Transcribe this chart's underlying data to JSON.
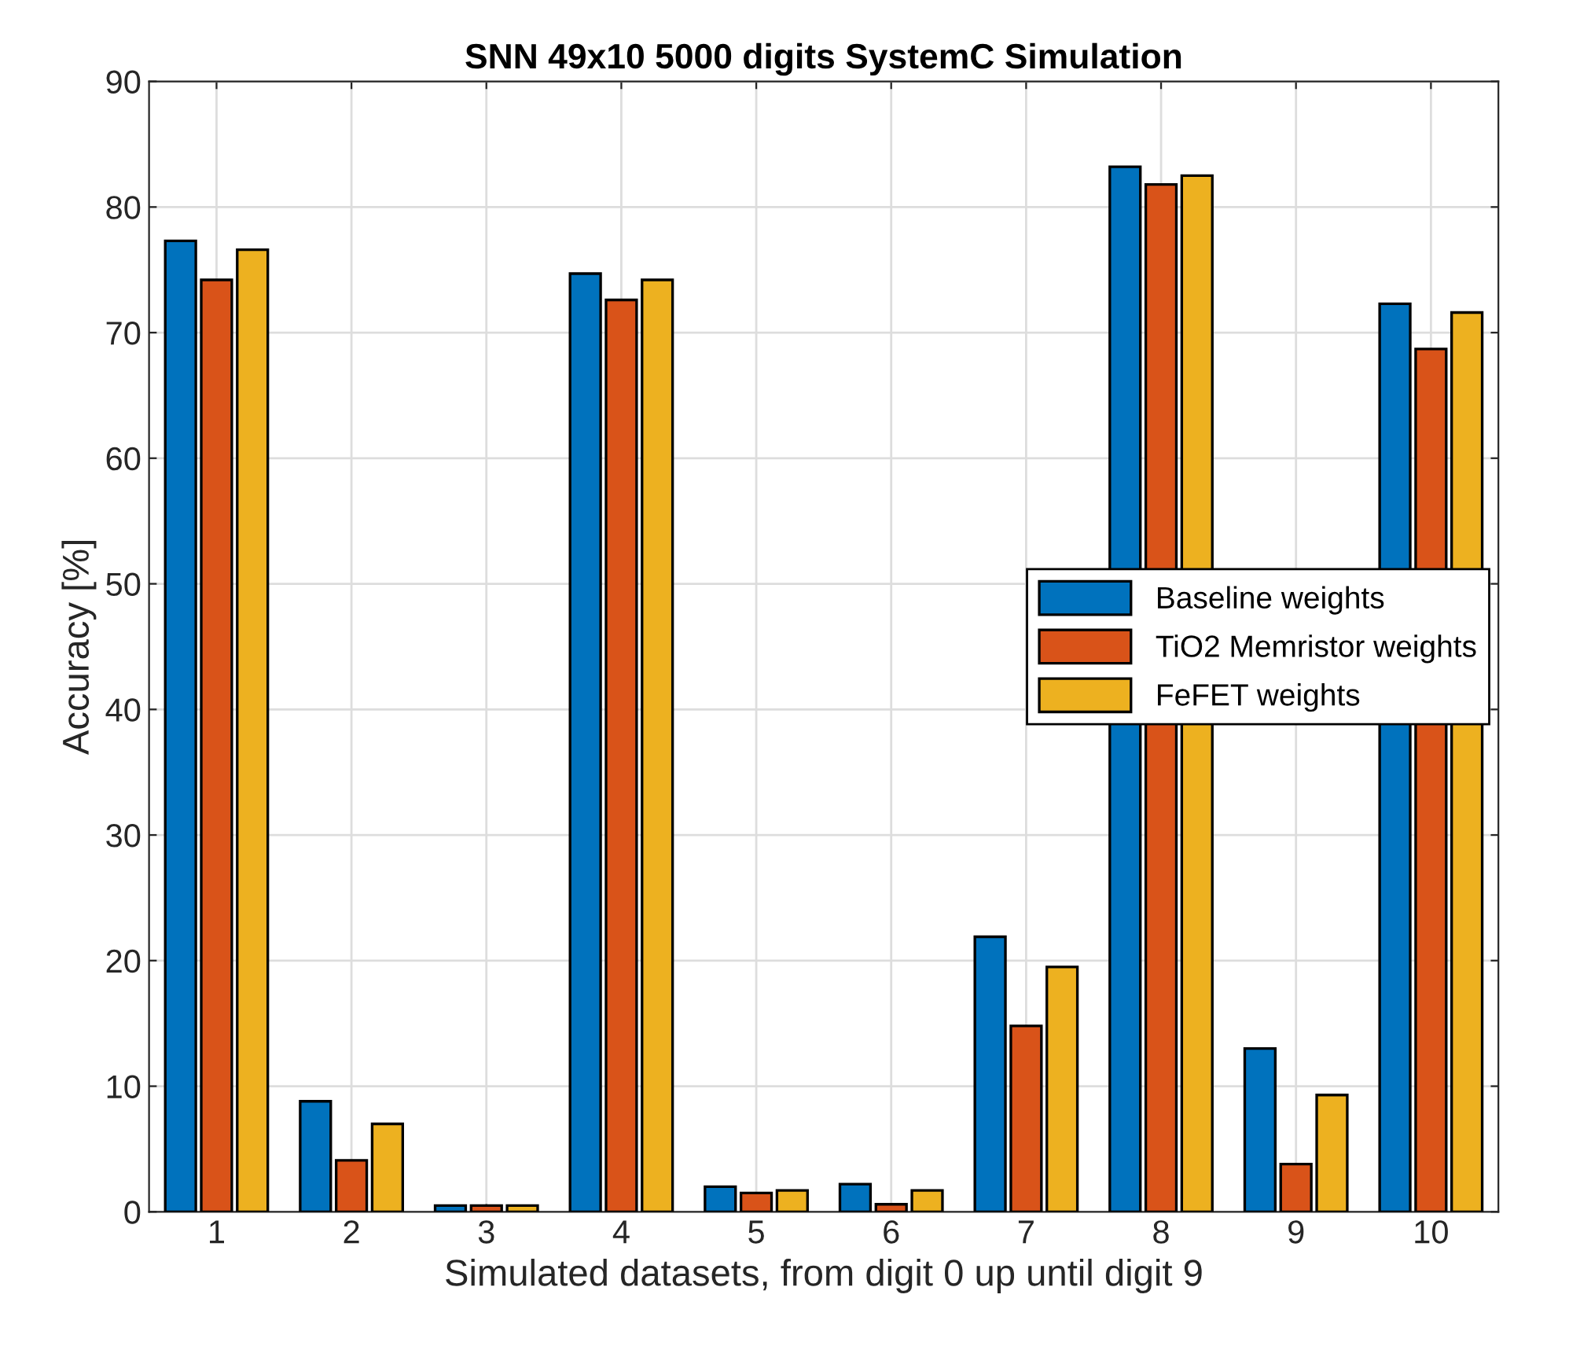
{
  "chart_data": {
    "type": "bar",
    "title": "SNN 49x10 5000 digits SystemC Simulation",
    "xlabel": "Simulated datasets, from digit 0 up until digit 9",
    "ylabel": "Accuracy [%]",
    "categories": [
      "1",
      "2",
      "3",
      "4",
      "5",
      "6",
      "7",
      "8",
      "9",
      "10"
    ],
    "series": [
      {
        "name": "Baseline weights",
        "color": "#0072bd",
        "values": [
          77.3,
          8.8,
          0.5,
          74.7,
          2.0,
          2.2,
          21.9,
          83.2,
          13.0,
          72.3
        ]
      },
      {
        "name": "TiO2 Memristor weights",
        "color": "#d95319",
        "values": [
          74.2,
          4.1,
          0.5,
          72.6,
          1.5,
          0.6,
          14.8,
          81.8,
          3.8,
          68.7
        ]
      },
      {
        "name": "FeFET weights",
        "color": "#edb120",
        "values": [
          76.6,
          7.0,
          0.5,
          74.2,
          1.7,
          1.7,
          19.5,
          82.5,
          9.3,
          71.6
        ]
      }
    ],
    "ylim": [
      0,
      90
    ],
    "yticks": [
      0,
      10,
      20,
      30,
      40,
      50,
      60,
      70,
      80,
      90
    ],
    "grid": true,
    "legend": "right"
  }
}
